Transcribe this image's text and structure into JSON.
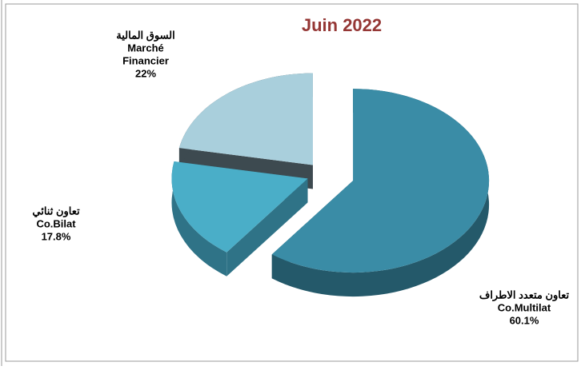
{
  "chart_data": {
    "type": "pie3d",
    "title": "Juin 2022",
    "categories": [
      [
        "تعاون متعدد الاطراف",
        "Co.Multilat"
      ],
      [
        "تعاون ثنائي",
        "Co.Bilat"
      ],
      [
        "السوق المالية",
        "Marché",
        "Financier"
      ]
    ],
    "values": [
      60.1,
      17.8,
      22
    ],
    "value_labels": [
      "60.1%",
      "17.8%",
      "22%"
    ],
    "colors": [
      "#3a8ca6",
      "#4aaec8",
      "#a9cfdc"
    ]
  }
}
